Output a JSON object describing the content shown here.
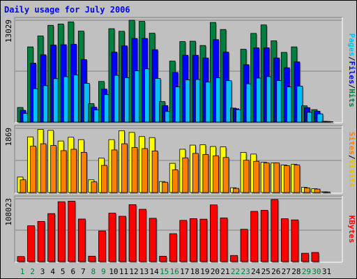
{
  "chart_data": {
    "type": "bar",
    "title": "Daily usage for July 2006",
    "categories": [
      "1",
      "2",
      "3",
      "4",
      "5",
      "6",
      "7",
      "8",
      "9",
      "10",
      "11",
      "12",
      "13",
      "14",
      "15",
      "16",
      "17",
      "18",
      "19",
      "20",
      "21",
      "22",
      "23",
      "24",
      "25",
      "26",
      "27",
      "28",
      "29",
      "30",
      "31"
    ],
    "weekend_days": [
      "1",
      "2",
      "8",
      "9",
      "15",
      "16",
      "22",
      "23",
      "29",
      "30"
    ],
    "panels": [
      {
        "id": "hits-files-pages",
        "ymax_label": "13029",
        "ylim": [
          0,
          13029
        ],
        "side_labels": [
          {
            "text": "Hits",
            "color": "#008040"
          },
          {
            "text": "/",
            "color": "#000000"
          },
          {
            "text": "Files",
            "color": "#0000ff"
          },
          {
            "text": "/",
            "color": "#000000"
          },
          {
            "text": "Pages",
            "color": "#00c0ff"
          }
        ],
        "series": [
          {
            "name": "Hits",
            "color": "#008040",
            "values": [
              1870,
              9620,
              11020,
              12380,
              12550,
              12820,
              11640,
              2360,
              5200,
              11950,
              11620,
              13029,
              12890,
              11370,
              2620,
              7800,
              10300,
              10350,
              9800,
              12750,
              11850,
              1790,
              9320,
              11350,
              12430,
              10400,
              8920,
              9620,
              2080,
              1590,
              100
            ]
          },
          {
            "name": "Files",
            "color": "#0000ff",
            "values": [
              1500,
              7540,
              8600,
              9850,
              9900,
              9950,
              8000,
              1900,
              4220,
              8950,
              9750,
              10700,
              10700,
              9260,
              2100,
              6350,
              8550,
              8550,
              8200,
              10550,
              8950,
              1700,
              7340,
              9500,
              9500,
              8200,
              6950,
              7700,
              1850,
              1400,
              80
            ]
          },
          {
            "name": "Pages",
            "color": "#00c0ff",
            "values": [
              1100,
              4270,
              4650,
              5550,
              5800,
              6030,
              4950,
              1550,
              3500,
              5980,
              5680,
              6550,
              6800,
              5580,
              1350,
              4500,
              5400,
              5440,
              5110,
              5660,
              5290,
              1590,
              4890,
              5620,
              5810,
              5300,
              4500,
              4600,
              1250,
              1050,
              50
            ]
          }
        ]
      },
      {
        "id": "visits-sites",
        "ymax_label": "1869",
        "ylim": [
          0,
          1869
        ],
        "side_labels": [
          {
            "text": "Visits",
            "color": "#e8c000"
          },
          {
            "text": "/",
            "color": "#000000"
          },
          {
            "text": "Sites",
            "color": "#ff8000"
          }
        ],
        "series": [
          {
            "name": "Visits",
            "color": "#ffff00",
            "values": [
              450,
              1620,
              1840,
              1810,
              1500,
              1610,
              1540,
              370,
              1000,
              1540,
              1800,
              1750,
              1630,
              1600,
              320,
              850,
              1260,
              1380,
              1390,
              1340,
              1330,
              140,
              1170,
              1120,
              880,
              860,
              800,
              820,
              150,
              110,
              20
            ]
          },
          {
            "name": "Sites",
            "color": "#ff8000",
            "values": [
              370,
              1350,
              1420,
              1370,
              1220,
              1260,
              1170,
              310,
              790,
              1240,
              1420,
              1310,
              1280,
              1210,
              300,
              660,
              1010,
              1140,
              1110,
              1070,
              1020,
              120,
              940,
              910,
              860,
              860,
              780,
              800,
              130,
              100,
              15
            ]
          }
        ]
      },
      {
        "id": "kbytes",
        "ymax_label": "108023",
        "ylim": [
          0,
          108023
        ],
        "side_labels": [
          {
            "text": "KBytes",
            "color": "#ff0000"
          }
        ],
        "series": [
          {
            "name": "KBytes",
            "color": "#ff0000",
            "values": [
              8700,
              61600,
              69100,
              82600,
              103000,
              104000,
              73200,
              9300,
              52700,
              83300,
              78000,
              98000,
              90000,
              74500,
              9200,
              48000,
              70900,
              73900,
              73000,
              97500,
              75100,
              10500,
              55600,
              86400,
              88200,
              106800,
              73700,
              71700,
              14300,
              15700,
              0
            ]
          }
        ]
      }
    ]
  }
}
